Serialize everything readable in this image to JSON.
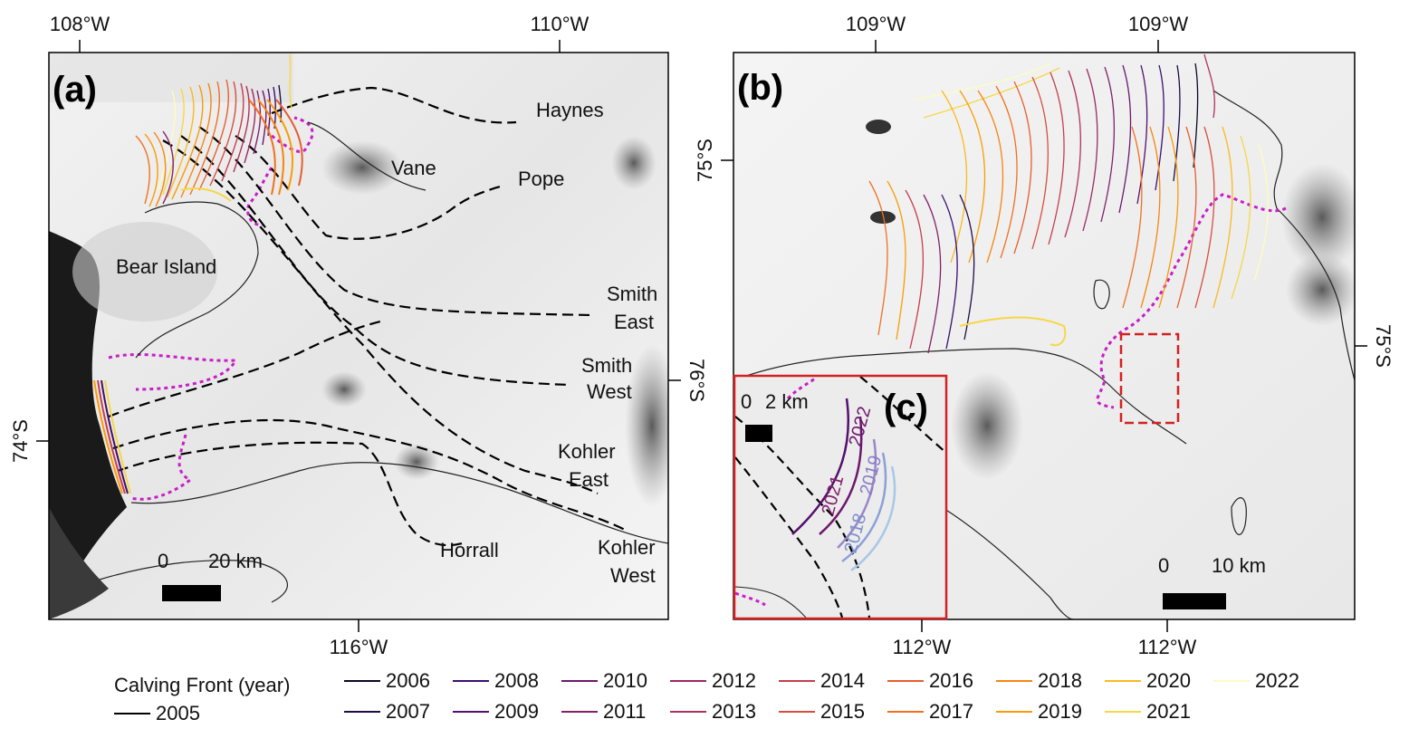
{
  "panels": {
    "a": {
      "letter": "(a)",
      "top_ticks": [
        "108°W",
        "110°W"
      ],
      "bottom_ticks": [
        "116°W"
      ],
      "left_ticks": [
        "74°S"
      ],
      "right_ticks": [
        "76°S"
      ],
      "labels": {
        "haynes": "Haynes",
        "vane": "Vane",
        "pope": "Pope",
        "bear_island": "Bear Island",
        "smith_east_1": "Smith",
        "smith_east_2": "East",
        "smith_west_1": "Smith",
        "smith_west_2": "West",
        "kohler_east_1": "Kohler",
        "kohler_east_2": "East",
        "horrall": "Horrall",
        "kohler_west_1": "Kohler",
        "kohler_west_2": "West"
      },
      "scale": {
        "zero": "0",
        "length": "20 km"
      }
    },
    "b": {
      "letter": "(b)",
      "top_ticks": [
        "109°W",
        "109°W"
      ],
      "bottom_ticks": [
        "112°W",
        "112°W"
      ],
      "left_ticks": [
        "75°S"
      ],
      "right_ticks": [
        "75°S"
      ],
      "scale": {
        "zero": "0",
        "length": "10 km"
      }
    },
    "c": {
      "letter": "(c)",
      "scale": {
        "zero": "0",
        "length": "2 km"
      },
      "year_labels": [
        "2022",
        "2021",
        "2019",
        "2018"
      ]
    }
  },
  "legend": {
    "title": "Calving Front (year)",
    "items": [
      {
        "year": "2005",
        "color": "#000000"
      },
      {
        "year": "2006",
        "color": "#0b0724"
      },
      {
        "year": "2007",
        "color": "#1f0c48"
      },
      {
        "year": "2008",
        "color": "#3b0f70"
      },
      {
        "year": "2009",
        "color": "#550f6d"
      },
      {
        "year": "2010",
        "color": "#6c176e"
      },
      {
        "year": "2011",
        "color": "#82206c"
      },
      {
        "year": "2012",
        "color": "#9b2964"
      },
      {
        "year": "2013",
        "color": "#b0325a"
      },
      {
        "year": "2014",
        "color": "#c63d4d"
      },
      {
        "year": "2015",
        "color": "#d84d3e"
      },
      {
        "year": "2016",
        "color": "#e65d2f"
      },
      {
        "year": "2017",
        "color": "#f0701f"
      },
      {
        "year": "2018",
        "color": "#f78410"
      },
      {
        "year": "2019",
        "color": "#fb9b06"
      },
      {
        "year": "2020",
        "color": "#fbb91f"
      },
      {
        "year": "2021",
        "color": "#f6d746"
      },
      {
        "year": "2022",
        "color": "#fcfdbf"
      }
    ]
  },
  "colors": {
    "grounding_line": "#c81ec8",
    "flowline": "#000000",
    "inset_border": "#d42020"
  }
}
